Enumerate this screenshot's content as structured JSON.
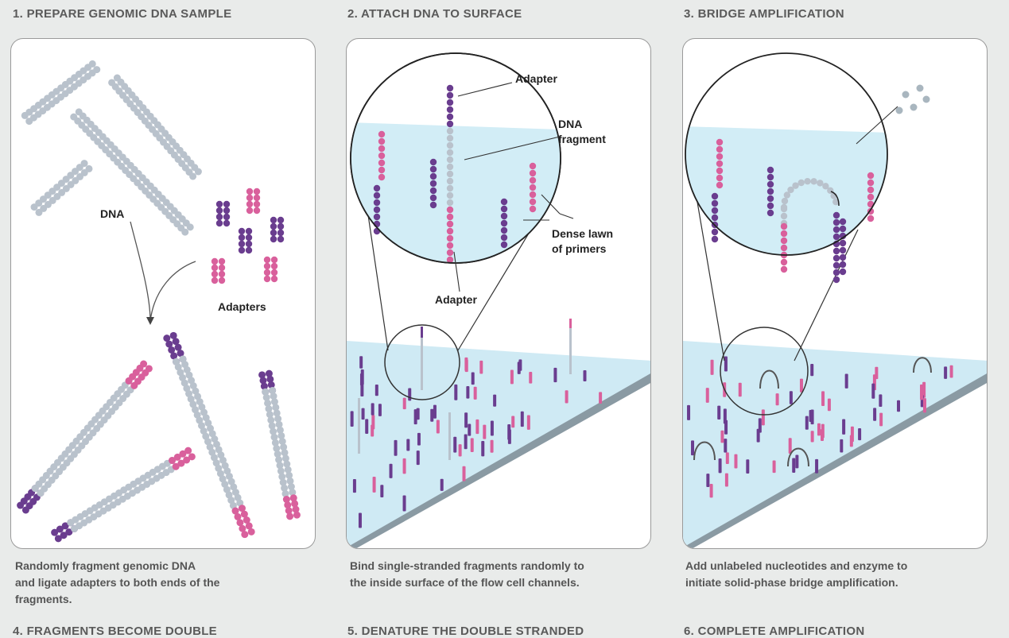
{
  "steps": [
    {
      "heading": "1. PREPARE GENOMIC DNA SAMPLE",
      "labels": {
        "dna": "DNA",
        "adapters": "Adapters"
      },
      "caption": [
        "Randomly fragment genomic DNA",
        "and ligate adapters to both ends of the",
        "fragments."
      ]
    },
    {
      "heading": "2. ATTACH DNA TO SURFACE",
      "labels": {
        "adapter_top": "Adapter",
        "dna": "DNA",
        "fragment": "fragment",
        "dense": "Dense lawn",
        "primers": "of primers",
        "adapter_bottom": "Adapter"
      },
      "caption": [
        "Bind single-stranded fragments randomly to",
        "the inside surface of the flow cell channels."
      ]
    },
    {
      "heading": "3. BRIDGE AMPLIFICATION",
      "caption": [
        "Add unlabeled nucleotides and enzyme to",
        "initiate solid-phase bridge amplification."
      ]
    }
  ],
  "next_headings": [
    "4. FRAGMENTS BECOME DOUBLE",
    "5. DENATURE THE DOUBLE STRANDED",
    "6. COMPLETE AMPLIFICATION"
  ],
  "colors": {
    "dna": "#b9c2cc",
    "adapter_purple": "#6a3d8f",
    "adapter_pink": "#d9609c",
    "surface": "#bfe3f0",
    "lens_fill": "#e3f3f9"
  }
}
